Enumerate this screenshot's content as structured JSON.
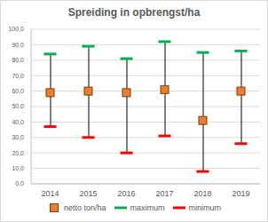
{
  "chart_data": {
    "type": "line",
    "title": "Spreiding in opbrengst/ha",
    "categories": [
      "2014",
      "2015",
      "2016",
      "2017",
      "2018",
      "2019"
    ],
    "series": [
      {
        "name": "netto ton/ha",
        "color": "#ed7d31",
        "marker": "square",
        "values": [
          59,
          60,
          59,
          61,
          41,
          60
        ]
      },
      {
        "name": "maximum",
        "color": "#00b050",
        "marker": "dash",
        "values": [
          84,
          89,
          81,
          92,
          85,
          86
        ]
      },
      {
        "name": "minimum",
        "color": "#ff0000",
        "marker": "dash",
        "values": [
          37,
          30,
          20,
          31,
          8,
          26
        ]
      }
    ],
    "ylim": [
      0,
      100
    ],
    "yticks": [
      {
        "value": 0,
        "label": "0,0"
      },
      {
        "value": 10,
        "label": "10,0"
      },
      {
        "value": 20,
        "label": "20,0"
      },
      {
        "value": 30,
        "label": "30,0"
      },
      {
        "value": 40,
        "label": "40,0"
      },
      {
        "value": 50,
        "label": "50,0"
      },
      {
        "value": 60,
        "label": "60,0"
      },
      {
        "value": 70,
        "label": "70,0"
      },
      {
        "value": 80,
        "label": "80,0"
      },
      {
        "value": 90,
        "label": "90,0"
      },
      {
        "value": 100,
        "label": "100,0"
      }
    ],
    "grid": true
  }
}
